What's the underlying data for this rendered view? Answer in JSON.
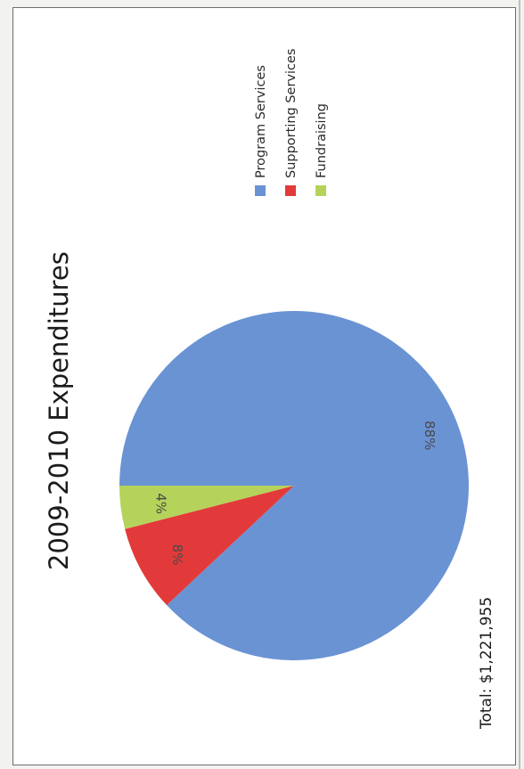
{
  "chart_data": {
    "type": "pie",
    "title": "2009-2010 Expenditures",
    "annotation": "Total: $1,221,955",
    "categories": [
      "Program Services",
      "Supporting Services",
      "Fundraising"
    ],
    "values": [
      88,
      8,
      4
    ],
    "labels": [
      "88%",
      "8%",
      "4%"
    ],
    "colors": [
      "#6a93d4",
      "#e23a3a",
      "#b5d35a"
    ],
    "legend_position": "right",
    "orientation": "rotated 90° counter-clockwise"
  }
}
